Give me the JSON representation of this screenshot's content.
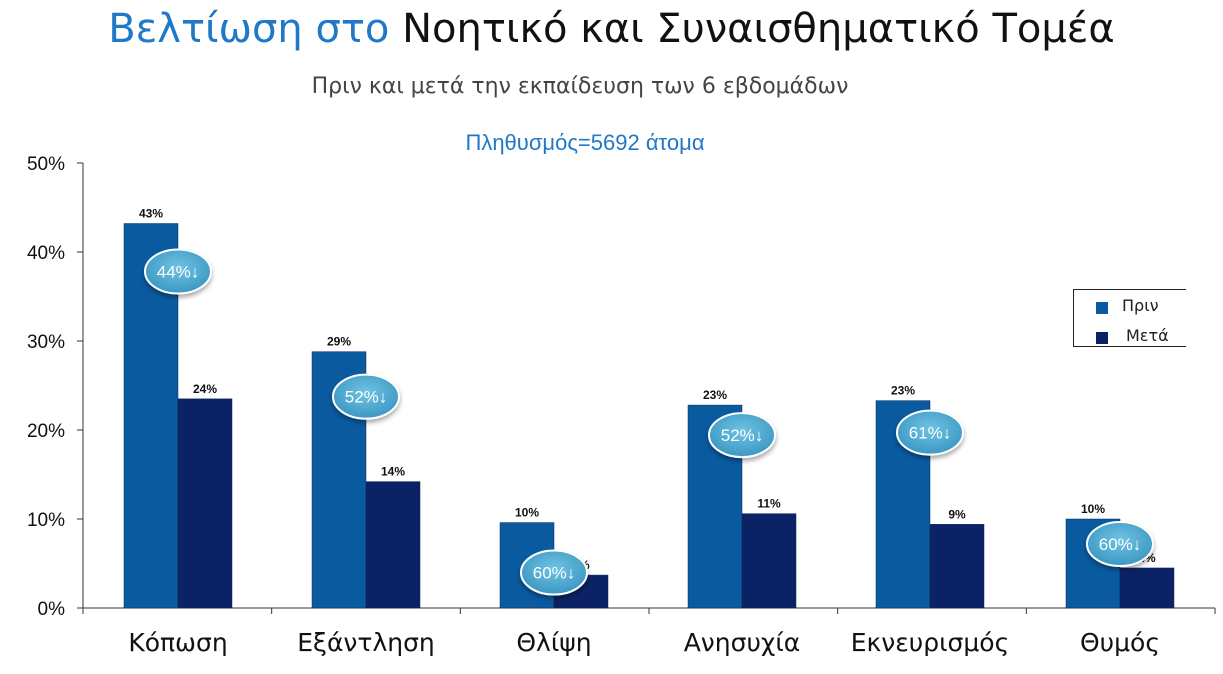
{
  "header": {
    "title_accent": "Βελτίωση στο",
    "title_rest": "Νοητικό και Συναισθηματικό Τομέα",
    "subtitle": "Πριν και μετά την εκπαίδευση των 6 εβδομάδων",
    "population": "Πληθυσμός=5692  άτομα"
  },
  "chart_data": {
    "type": "bar",
    "categories": [
      "Κόπωση",
      "Εξάντληση",
      "Θλίψη",
      "Ανησυχία",
      "Εκνευρισμός",
      "Θυμός"
    ],
    "series": [
      {
        "name": "Πριν",
        "values": [
          43.2,
          28.8,
          9.6,
          22.8,
          23.3,
          10.0
        ],
        "labels": [
          "43%",
          "29%",
          "10%",
          "23%",
          "23%",
          "10%"
        ],
        "color": "#0a5aa0"
      },
      {
        "name": "Μετά",
        "values": [
          23.5,
          14.2,
          3.7,
          10.6,
          9.4,
          4.5
        ],
        "labels": [
          "24%",
          "14%",
          "4%",
          "11%",
          "9%",
          "4%"
        ],
        "color": "#0b2266"
      }
    ],
    "improvements": [
      "44%↓",
      "52%↓",
      "60%↓",
      "52%↓",
      "61%↓",
      "60%↓"
    ],
    "yticks": [
      "0%",
      "10%",
      "20%",
      "30%",
      "40%",
      "50%"
    ],
    "ylim": [
      0,
      50
    ],
    "grid": false,
    "legend": "right",
    "bubble_color": "#4aa8cf"
  }
}
